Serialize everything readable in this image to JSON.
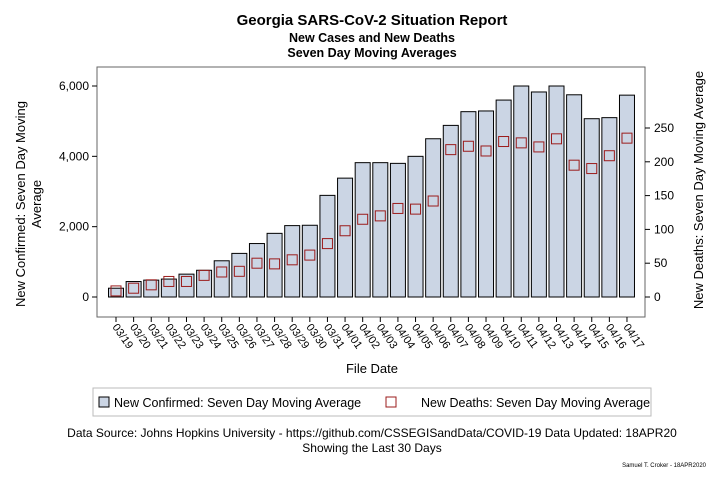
{
  "chart_data": {
    "type": "bar",
    "title": "Georgia SARS-CoV-2 Situation Report",
    "subtitle": [
      "New Cases and New Deaths",
      "Seven Day Moving Averages"
    ],
    "xlabel": "File Date",
    "ylabel_left": "New Confirmed: Seven Day Moving Average",
    "ylabel_right": "New Deaths: Seven Day Moving Average",
    "ylim_left": [
      0,
      6500
    ],
    "yticks_left": [
      "0",
      "2,000",
      "4,000",
      "6,000"
    ],
    "ylim_right": [
      0,
      270
    ],
    "yticks_right": [
      "0",
      "50",
      "100",
      "150",
      "200",
      "250"
    ],
    "categories": [
      "03/19",
      "03/20",
      "03/21",
      "03/22",
      "03/23",
      "03/24",
      "03/25",
      "03/26",
      "03/27",
      "03/28",
      "03/29",
      "03/30",
      "03/31",
      "04/01",
      "04/02",
      "04/03",
      "04/04",
      "04/05",
      "04/06",
      "04/07",
      "04/08",
      "04/09",
      "04/10",
      "04/11",
      "04/12",
      "04/13",
      "04/14",
      "04/15",
      "04/16",
      "04/17"
    ],
    "series": [
      {
        "name": "New Confirmed: Seven Day Moving Average",
        "type": "bar",
        "axis": "left",
        "color": "#cbd5e4",
        "values": [
          250,
          440,
          480,
          510,
          650,
          760,
          1030,
          1240,
          1520,
          1810,
          2030,
          2040,
          2890,
          3380,
          3820,
          3820,
          3800,
          4000,
          4500,
          4880,
          5270,
          5290,
          5600,
          6000,
          5830,
          6000,
          5750,
          5070,
          5100,
          5740
        ]
      },
      {
        "name": "New Deaths: Seven Day Moving Average",
        "type": "scatter",
        "axis": "right",
        "marker": "square",
        "color": "#9b1b1b",
        "values": [
          9,
          13,
          18,
          23,
          23,
          32,
          37,
          38,
          50,
          49,
          55,
          62,
          79,
          98,
          115,
          120,
          131,
          130,
          142,
          218,
          223,
          216,
          230,
          228,
          222,
          234,
          195,
          190,
          209,
          235
        ]
      }
    ],
    "legend_position": "bottom",
    "grid": false
  },
  "footer": {
    "source": "Data Source: Johns Hopkins University - https://github.com/CSSEGISandData/COVID-19 Data Updated: 18APR20",
    "range": "Showing the Last 30 Days",
    "credit": "Samuel T. Croker - 18APR2020"
  }
}
